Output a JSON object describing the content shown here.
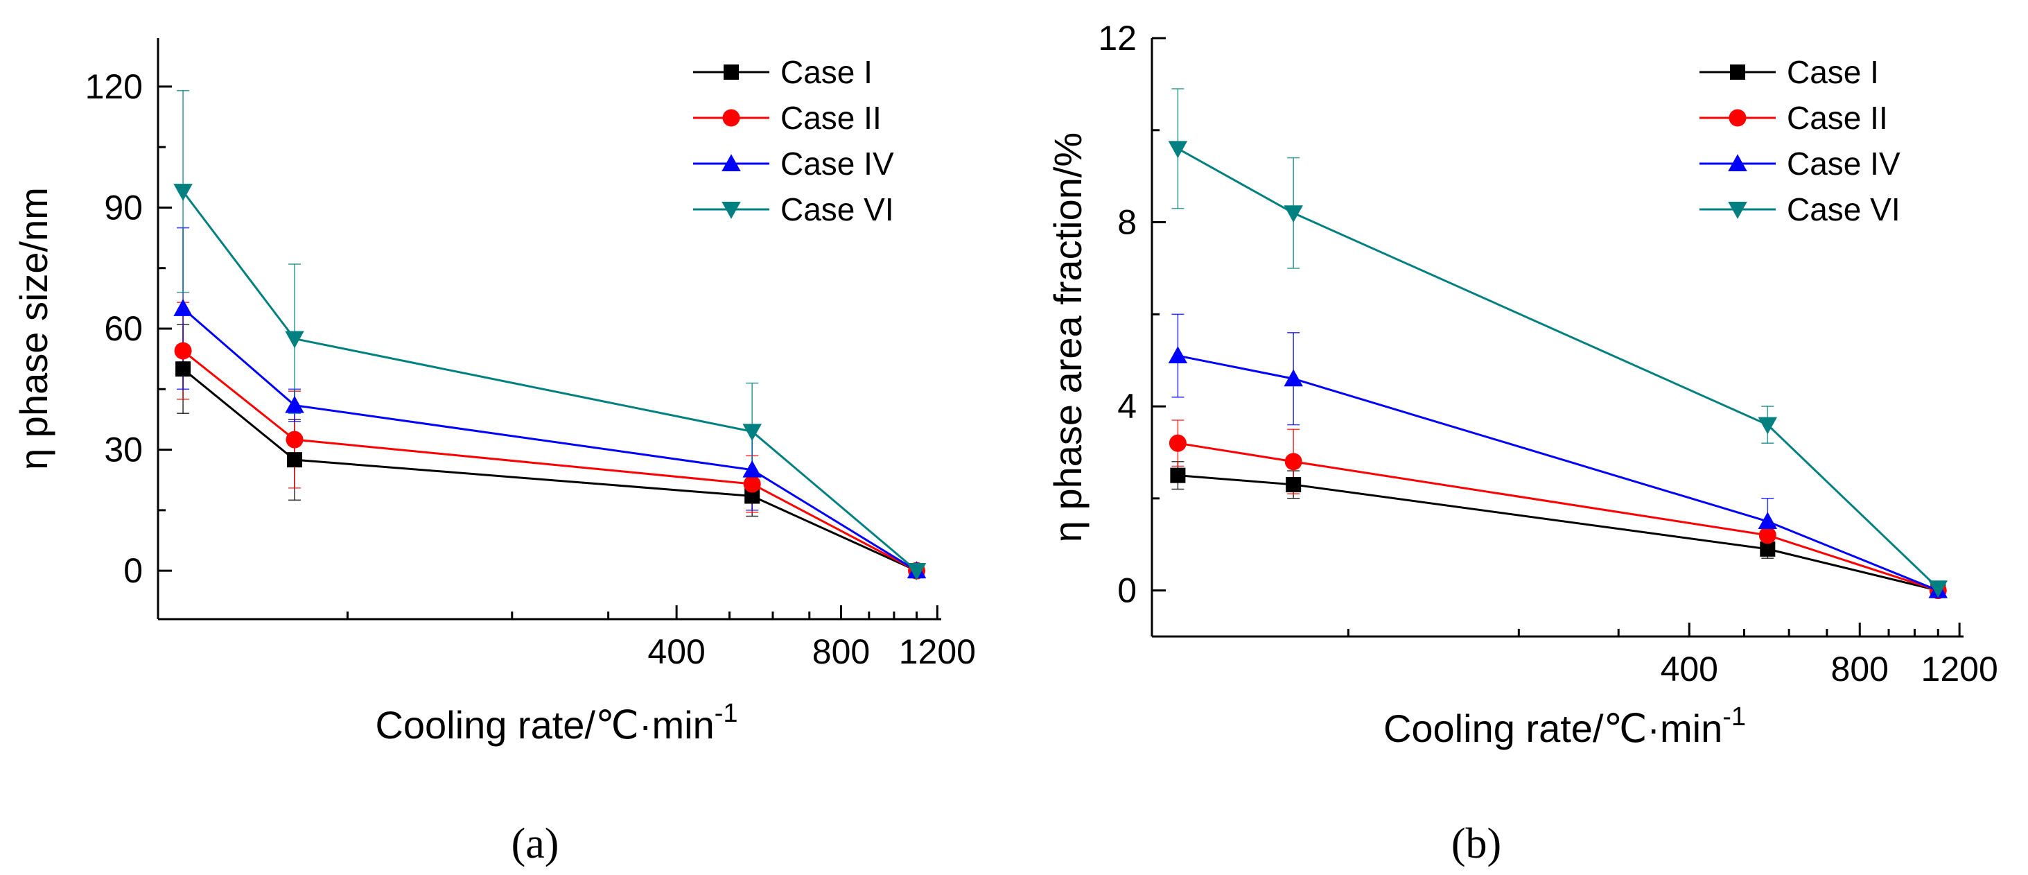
{
  "chart_data": [
    {
      "type": "line",
      "panel_label": "(a)",
      "title": "",
      "xlabel": "Cooling rate/℃·min",
      "xlabel_superscript": "-1",
      "ylabel": "η phase size/nm",
      "xscale": "log",
      "xlim": [
        45,
        1220
      ],
      "ylim": [
        -12,
        132
      ],
      "yticks": [
        0,
        30,
        60,
        90,
        120
      ],
      "ytick_labels": [
        "0",
        "30",
        "60",
        "90",
        "120"
      ],
      "xticks": [
        400,
        800,
        1200
      ],
      "xtick_labels": [
        "400",
        "800",
        "1200"
      ],
      "x": [
        50,
        80,
        550,
        1100
      ],
      "legend_position": "top-right",
      "series": [
        {
          "name": "Case I",
          "color": "#000000",
          "marker": "square",
          "values": [
            50,
            27.5,
            18.5,
            0
          ],
          "errors": [
            11,
            10,
            5,
            0
          ]
        },
        {
          "name": "Case II",
          "color": "#ff0000",
          "marker": "circle",
          "values": [
            54.5,
            32.5,
            21.5,
            0
          ],
          "errors": [
            12,
            12,
            7,
            0
          ]
        },
        {
          "name": "Case IV",
          "color": "#0000ff",
          "marker": "triangle-up",
          "values": [
            65,
            41,
            25,
            0
          ],
          "errors": [
            20,
            4,
            10,
            0
          ]
        },
        {
          "name": "Case VI",
          "color": "#008080",
          "marker": "triangle-down",
          "values": [
            94,
            57.5,
            34.5,
            0
          ],
          "errors": [
            25,
            18.5,
            12,
            0
          ]
        }
      ]
    },
    {
      "type": "line",
      "panel_label": "(b)",
      "title": "",
      "xlabel": "Cooling rate/℃·min",
      "xlabel_superscript": "-1",
      "ylabel": "η phase area fraction/%",
      "xscale": "log",
      "xlim": [
        45,
        1220
      ],
      "ylim": [
        -1,
        12
      ],
      "yticks": [
        0,
        4,
        8,
        12
      ],
      "ytick_labels": [
        "0",
        "4",
        "8",
        "12"
      ],
      "xticks": [
        400,
        800,
        1200
      ],
      "xtick_labels": [
        "400",
        "800",
        "1200"
      ],
      "x": [
        50,
        80,
        550,
        1100
      ],
      "legend_position": "top-right",
      "series": [
        {
          "name": "Case I",
          "color": "#000000",
          "marker": "square",
          "values": [
            2.5,
            2.3,
            0.9,
            0
          ],
          "errors": [
            0.3,
            0.3,
            0.2,
            0
          ]
        },
        {
          "name": "Case II",
          "color": "#ff0000",
          "marker": "circle",
          "values": [
            3.2,
            2.8,
            1.2,
            0
          ],
          "errors": [
            0.5,
            0.7,
            0.2,
            0
          ]
        },
        {
          "name": "Case IV",
          "color": "#0000ff",
          "marker": "triangle-up",
          "values": [
            5.1,
            4.6,
            1.5,
            0
          ],
          "errors": [
            0.9,
            1.0,
            0.5,
            0
          ]
        },
        {
          "name": "Case VI",
          "color": "#008080",
          "marker": "triangle-down",
          "values": [
            9.6,
            8.2,
            3.6,
            0.05
          ],
          "errors": [
            1.3,
            1.2,
            0.4,
            0
          ]
        }
      ]
    }
  ]
}
